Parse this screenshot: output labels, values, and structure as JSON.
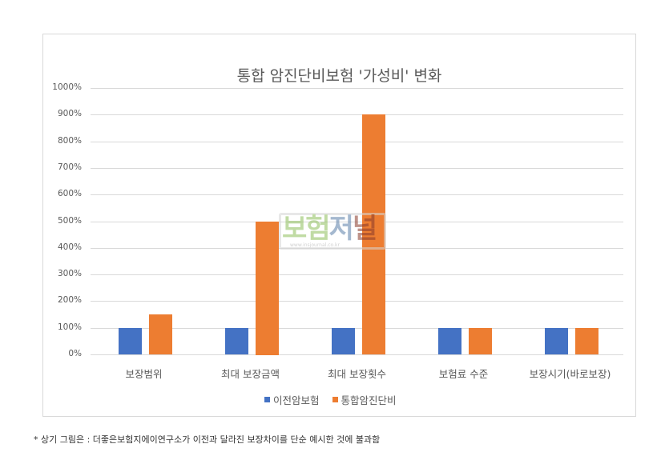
{
  "chart": {
    "title": "통합 암진단비보험 '가성비'   변화",
    "y_ticks": [
      "1000%",
      "900%",
      "800%",
      "700%",
      "600%",
      "500%",
      "400%",
      "300%",
      "200%",
      "100%",
      "0%"
    ],
    "categories": [
      "보장범위",
      "최대 보장금액",
      "최대 보장횟수",
      "보험료 수준",
      "보장시기(바로보장)"
    ],
    "legend": [
      {
        "label": "이전암보험",
        "color": "#4472C4"
      },
      {
        "label": "통합암진단비",
        "color": "#ED7D31"
      }
    ]
  },
  "watermark": {
    "text_1": "보험",
    "text_2": "저",
    "text_3": "널",
    "url": "www.insjournal.co.kr"
  },
  "footnote": "* 상기 그림은  : 더좋은보험지에이연구소가 이전과 달라진 보장차이를  단순 예시한 것에 불과함",
  "chart_data": {
    "type": "bar",
    "title": "통합 암진단비보험 '가성비'   변화",
    "categories": [
      "보장범위",
      "최대 보장금액",
      "최대 보장횟수",
      "보험료 수준",
      "보장시기(바로보장)"
    ],
    "series": [
      {
        "name": "이전암보험",
        "color": "#4472C4",
        "values": [
          100,
          100,
          100,
          100,
          100
        ]
      },
      {
        "name": "통합암진단비",
        "color": "#ED7D31",
        "values": [
          150,
          500,
          900,
          100,
          100
        ]
      }
    ],
    "xlabel": "",
    "ylabel": "",
    "ylim": [
      0,
      1000
    ],
    "y_unit": "%",
    "y_tick_step": 100,
    "grid": true,
    "legend_position": "bottom"
  }
}
